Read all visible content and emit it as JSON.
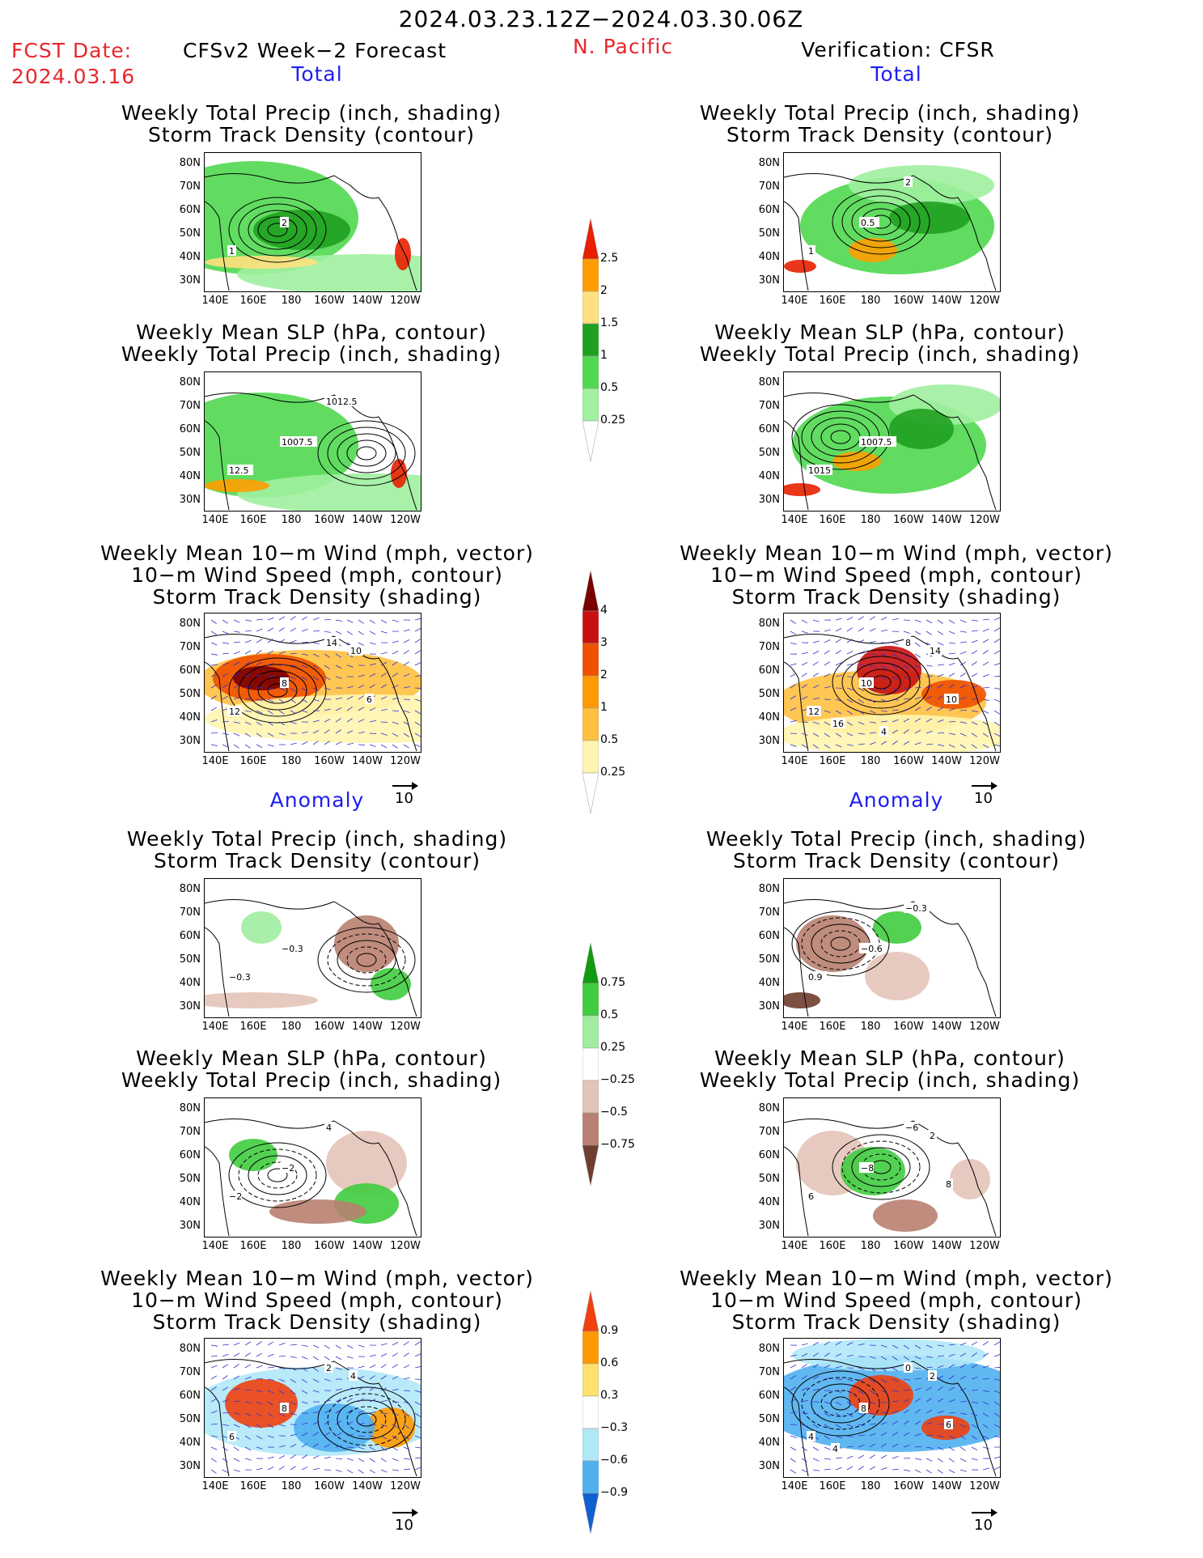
{
  "header": {
    "date_range": "2024.03.23.12Z−2024.03.30.06Z",
    "fcst_label": "FCST Date:",
    "fcst_date": "2024.03.16",
    "forecast_title": "CFSv2 Week−2 Forecast",
    "region": "N. Pacific",
    "verification_title": "Verification: CFSR"
  },
  "sections": {
    "total": "Total",
    "anomaly": "Anomaly"
  },
  "panel_titles": {
    "precip_storm": [
      "Weekly Total Precip (inch, shading)",
      "Storm Track Density (contour)"
    ],
    "slp_precip": [
      "Weekly Mean SLP (hPa, contour)",
      "Weekly Total Precip (inch, shading)"
    ],
    "wind_storm": [
      "Weekly Mean 10−m Wind (mph, vector)",
      "10−m Wind Speed (mph, contour)",
      "Storm Track Density (shading)"
    ]
  },
  "axes": {
    "lat_labels": [
      "80N",
      "70N",
      "60N",
      "50N",
      "40N",
      "30N"
    ],
    "lon_labels": [
      "140E",
      "160E",
      "180",
      "160W",
      "140W",
      "120W"
    ]
  },
  "vector_reference": "10",
  "colorbars": {
    "total_precip": {
      "levels": [
        "0.25",
        "0.5",
        "1",
        "1.5",
        "2",
        "2.5"
      ],
      "colors": [
        "#ffffff",
        "#a0f0a0",
        "#50d850",
        "#20a020",
        "#ffe080",
        "#ff9d00",
        "#e82000"
      ]
    },
    "total_storm": {
      "levels": [
        "0.25",
        "0.5",
        "1",
        "2",
        "3",
        "4"
      ],
      "colors": [
        "#ffffff",
        "#fff5b0",
        "#ffc040",
        "#ff9a00",
        "#f05000",
        "#c81010",
        "#7a0000"
      ]
    },
    "anom_precip": {
      "levels": [
        "0.75",
        "0.5",
        "0.25",
        "−0.25",
        "−0.5",
        "−0.75"
      ],
      "colors": [
        "#109a10",
        "#40cc40",
        "#a0eca0",
        "#ffffff",
        "#e4c4b8",
        "#b88070",
        "#6e3e30"
      ]
    },
    "anom_storm": {
      "levels": [
        "0.9",
        "0.6",
        "0.3",
        "−0.3",
        "−0.6",
        "−0.9"
      ],
      "colors": [
        "#f04010",
        "#ff9900",
        "#ffe070",
        "#ffffff",
        "#b0e8f8",
        "#50b0f0",
        "#1060d0"
      ]
    }
  },
  "panels": [
    {
      "id": "fcst-total-precip",
      "contour_labels": [
        "1",
        "2"
      ]
    },
    {
      "id": "verif-total-precip",
      "contour_labels": [
        "1",
        "0.5",
        "2"
      ]
    },
    {
      "id": "fcst-total-slp",
      "contour_labels": [
        "12.5",
        "1007.5",
        "1012.5"
      ]
    },
    {
      "id": "verif-total-slp",
      "contour_labels": [
        "1015",
        "1007.5"
      ]
    },
    {
      "id": "fcst-total-wind",
      "contour_labels": [
        "12",
        "8",
        "14",
        "10",
        "6"
      ]
    },
    {
      "id": "verif-total-wind",
      "contour_labels": [
        "12",
        "10",
        "8",
        "14",
        "10",
        "16",
        "4"
      ]
    },
    {
      "id": "fcst-anom-precip",
      "contour_labels": [
        "−0.3",
        "−0.3"
      ]
    },
    {
      "id": "verif-anom-precip",
      "contour_labels": [
        "0.9",
        "−0.6",
        "−0.3"
      ]
    },
    {
      "id": "fcst-anom-slp",
      "contour_labels": [
        "−2",
        "−2",
        "4"
      ]
    },
    {
      "id": "verif-anom-slp",
      "contour_labels": [
        "6",
        "−8",
        "−6",
        "2",
        "8"
      ]
    },
    {
      "id": "fcst-anom-wind",
      "contour_labels": [
        "6",
        "8",
        "2",
        "4"
      ]
    },
    {
      "id": "verif-anom-wind",
      "contour_labels": [
        "4",
        "8",
        "0",
        "2",
        "6",
        "4"
      ]
    }
  ]
}
